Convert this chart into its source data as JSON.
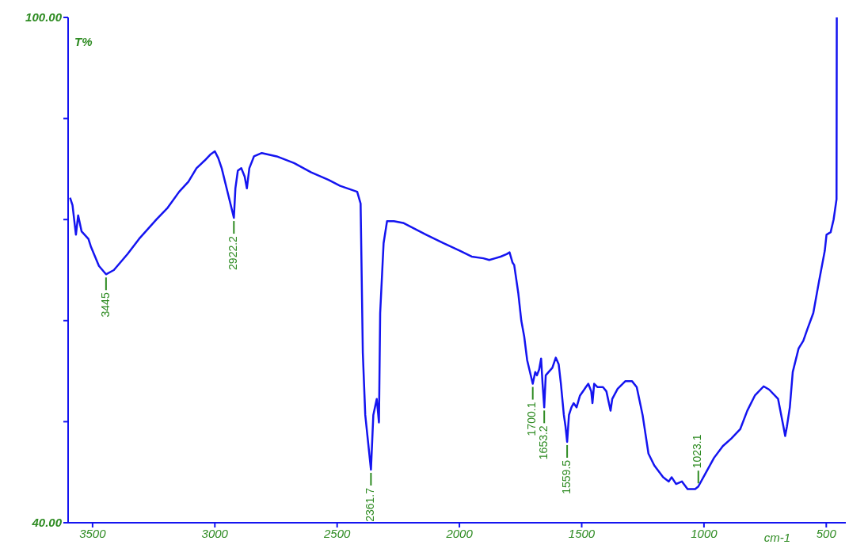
{
  "chart_data": {
    "type": "line",
    "xlabel": "cm-1",
    "ylabel": "T%",
    "marker": "none",
    "line_style": "solid",
    "xlim": [
      3600,
      420
    ],
    "xticks": [
      3500,
      3000,
      2500,
      2000,
      1500,
      1000,
      500
    ],
    "ylim": [
      40,
      100
    ],
    "yticks": [
      {
        "value": 100,
        "label": "100.00"
      },
      {
        "value": 88,
        "label": null
      },
      {
        "value": 76,
        "label": null
      },
      {
        "value": 64,
        "label": null
      },
      {
        "value": 52,
        "label": null
      },
      {
        "value": 40,
        "label": "40.00"
      }
    ],
    "x": [
      3592,
      3582,
      3568,
      3559,
      3545,
      3517,
      3507,
      3474,
      3445,
      3413,
      3357,
      3310,
      3239,
      3193,
      3146,
      3108,
      3075,
      3042,
      3019,
      3000,
      2986,
      2972,
      2944,
      2922.2,
      2916,
      2906,
      2892,
      2878,
      2869,
      2859,
      2840,
      2808,
      2747,
      2676,
      2606,
      2535,
      2488,
      2418,
      2404,
      2395,
      2385,
      2361.7,
      2352,
      2338,
      2329,
      2324,
      2310,
      2296,
      2268,
      2230,
      2183,
      2136,
      2066,
      1998,
      1950,
      1902,
      1878,
      1854,
      1831,
      1807,
      1795,
      1783,
      1776,
      1759,
      1747,
      1735,
      1723,
      1700.1,
      1690,
      1683,
      1674,
      1666,
      1660,
      1653.2,
      1647,
      1635,
      1620,
      1606,
      1594,
      1585,
      1573,
      1566,
      1559.5,
      1552,
      1542,
      1533,
      1521,
      1507,
      1490,
      1483,
      1473,
      1461,
      1456,
      1449,
      1435,
      1413,
      1399,
      1382,
      1375,
      1353,
      1322,
      1294,
      1275,
      1251,
      1227,
      1203,
      1167,
      1144,
      1132,
      1114,
      1090,
      1067,
      1036,
      1023.1,
      995,
      959,
      923,
      888,
      852,
      823,
      792,
      756,
      733,
      697,
      675,
      668,
      661,
      649,
      637,
      613,
      594,
      577,
      553,
      530,
      506,
      499,
      482,
      470,
      465,
      458,
      457
    ],
    "series": [
      {
        "color": "#1414f0",
        "values": [
          78.6,
          77.7,
          74.2,
          76.5,
          74.6,
          73.7,
          72.8,
          70.5,
          69.5,
          70.0,
          71.9,
          73.7,
          76.0,
          77.4,
          79.3,
          80.5,
          82.1,
          83.0,
          83.7,
          84.1,
          83.3,
          82.1,
          78.8,
          76.2,
          79.7,
          81.8,
          82.1,
          81.1,
          79.7,
          82.1,
          83.5,
          83.9,
          83.5,
          82.7,
          81.6,
          80.7,
          80.0,
          79.3,
          77.9,
          60.2,
          52.8,
          46.3,
          52.8,
          54.7,
          51.9,
          64.9,
          73.2,
          75.8,
          75.8,
          75.6,
          74.9,
          74.2,
          73.2,
          72.3,
          71.6,
          71.4,
          71.2,
          71.4,
          71.6,
          71.9,
          72.1,
          70.9,
          70.6,
          67.2,
          64.0,
          62.1,
          59.3,
          56.5,
          57.9,
          57.5,
          58.2,
          59.5,
          56.5,
          53.7,
          57.5,
          57.9,
          58.4,
          59.6,
          58.8,
          56.5,
          52.8,
          51.4,
          49.6,
          52.8,
          53.7,
          54.2,
          53.7,
          55.1,
          55.8,
          56.1,
          56.5,
          55.6,
          54.2,
          56.5,
          56.1,
          56.1,
          55.6,
          53.3,
          54.7,
          55.9,
          56.8,
          56.8,
          56.1,
          52.8,
          48.2,
          46.8,
          45.4,
          44.9,
          45.4,
          44.6,
          44.9,
          44.0,
          44.0,
          44.3,
          45.8,
          47.7,
          49.1,
          50.0,
          51.1,
          53.3,
          55.1,
          56.2,
          55.8,
          54.7,
          51.4,
          50.3,
          51.4,
          53.7,
          57.9,
          60.7,
          61.6,
          63.0,
          64.9,
          68.6,
          72.3,
          74.2,
          74.5,
          76.0,
          77.0,
          78.4,
          100
        ]
      }
    ],
    "annotations": [
      {
        "text": "3445",
        "x": 3445,
        "y": 69.5
      },
      {
        "text": "2922.2",
        "x": 2922.2,
        "y": 76.2
      },
      {
        "text": "2361.7",
        "x": 2361.7,
        "y": 46.3
      },
      {
        "text": "1700.1",
        "x": 1700.1,
        "y": 56.5
      },
      {
        "text": "1653.2",
        "x": 1653.2,
        "y": 53.7
      },
      {
        "text": "1559.5",
        "x": 1559.5,
        "y": 49.6
      },
      {
        "text": "1023.1",
        "x": 1023.1,
        "y": 44.3
      }
    ]
  }
}
